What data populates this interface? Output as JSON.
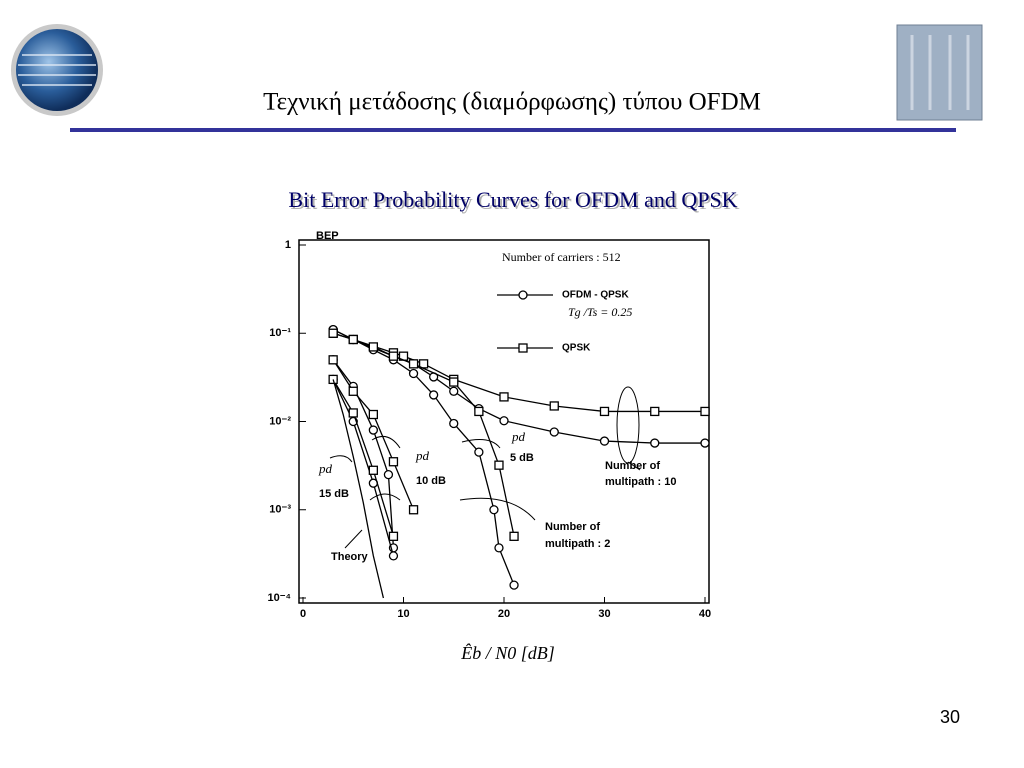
{
  "header": {
    "title": "Τεχνική μετάδοσης (διαμόρφωσης) τύπου OFDM"
  },
  "page_number": "30",
  "chart_data": {
    "type": "line",
    "title": "Bit Error Probability Curves for OFDM and QPSK",
    "y_label": "BEP",
    "x_label": "Êb / N0  [dB]",
    "log_y": true,
    "xlim": [
      0,
      40
    ],
    "xticks": [
      0,
      10,
      20,
      30,
      40
    ],
    "ylim": [
      0.0001,
      1
    ],
    "yticks": [
      {
        "value": 0.0001,
        "label": "10⁻⁴"
      },
      {
        "value": 0.001,
        "label": "10⁻³"
      },
      {
        "value": 0.01,
        "label": "10⁻²"
      },
      {
        "value": 0.1,
        "label": "10⁻¹"
      },
      1
    ],
    "annotations": [
      "Number of carriers : 512",
      "Tg /Ts = 0.25",
      "pd",
      "5 dB",
      "pd",
      "10 dB",
      "pd",
      "15 dB",
      "Number of",
      "multipath : 10",
      "Number of",
      "multipath : 2"
    ],
    "series": [
      {
        "name": "OFDM - QPSK",
        "marker": "circle",
        "color": "#000000",
        "x": [
          3,
          5,
          7,
          9,
          11,
          13,
          15,
          17.5,
          20,
          25,
          30,
          35,
          40
        ],
        "values": [
          0.11,
          0.085,
          0.068,
          0.055,
          0.045,
          0.032,
          0.022,
          0.014,
          0.0102,
          0.0076,
          0.006,
          0.0057,
          0.0057
        ]
      },
      {
        "name": "QPSK",
        "marker": "square",
        "color": "#000000",
        "x": [
          3,
          5,
          9,
          10,
          12,
          15,
          20,
          25,
          30,
          35,
          40
        ],
        "values": [
          0.1,
          0.085,
          0.06,
          0.055,
          0.045,
          0.03,
          0.019,
          0.015,
          0.013,
          0.013,
          0.013
        ]
      },
      {
        "marker": "circle",
        "color": "#000000",
        "x": [
          3,
          5,
          7,
          9,
          11,
          13,
          15,
          17.5,
          19,
          19.5,
          21
        ],
        "values": [
          0.11,
          0.085,
          0.065,
          0.05,
          0.035,
          0.02,
          0.0095,
          0.0045,
          0.001,
          0.00037,
          0.00014
        ]
      },
      {
        "marker": "square",
        "color": "#000000",
        "x": [
          3,
          5,
          7,
          9,
          11,
          15,
          17.5,
          19.5,
          21
        ],
        "values": [
          0.1,
          0.085,
          0.07,
          0.055,
          0.045,
          0.028,
          0.013,
          0.0032,
          0.0005
        ]
      },
      {
        "marker": "circle",
        "color": "#000000",
        "x": [
          3,
          5,
          7,
          8.5,
          9
        ],
        "values": [
          0.05,
          0.025,
          0.008,
          0.0025,
          0.00037
        ]
      },
      {
        "marker": "square",
        "color": "#000000",
        "x": [
          3,
          5,
          7,
          9,
          11
        ],
        "values": [
          0.05,
          0.022,
          0.012,
          0.0035,
          0.001
        ]
      },
      {
        "marker": "circle",
        "color": "#000000",
        "x": [
          3,
          5,
          7,
          9
        ],
        "values": [
          0.03,
          0.01,
          0.002,
          0.0003
        ]
      },
      {
        "marker": "square",
        "color": "#000000",
        "x": [
          3,
          5,
          7,
          9
        ],
        "values": [
          0.03,
          0.0125,
          0.0028,
          0.0005
        ]
      },
      {
        "name": "Theory",
        "marker": "none",
        "color": "#000000",
        "x": [
          3,
          4,
          5,
          6,
          7,
          8
        ],
        "values": [
          0.03,
          0.012,
          0.004,
          0.0012,
          0.0003,
          0.0001
        ]
      }
    ]
  }
}
